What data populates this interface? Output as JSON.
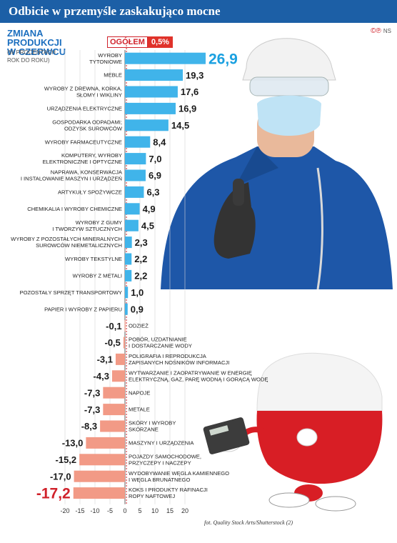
{
  "header": {
    "title": "Odbicie w przemyśle zaskakująco mocne"
  },
  "logo": {
    "icons": "©℗",
    "text": "NS"
  },
  "subtitle": [
    "ZMIANA PRODUKCJI",
    "W CZERWCU"
  ],
  "unit_note": [
    "(W PROCENTACH",
    "ROK DO ROKU)"
  ],
  "overall": {
    "label": "OGÓŁEM",
    "value": "0,5%"
  },
  "credit": "fot. Quality Stock Arts/Shutterstock (2)",
  "colors": {
    "header": "#1c5fa6",
    "positive_bar": "#40b4ea",
    "negative_bar": "#f29a86",
    "accent_red": "#d0212a",
    "text_dark": "#1a1a1a"
  },
  "chart_data": {
    "type": "bar",
    "orientation": "horizontal",
    "title": "Odbicie w przemyśle zaskakująco mocne",
    "subtitle": "ZMIANA PRODUKCJI W CZERWCU (W PROCENTACH ROK DO ROKU)",
    "xlim": [
      -20,
      29
    ],
    "xticks": [
      -20,
      -15,
      -10,
      -5,
      0,
      5,
      10,
      15,
      20
    ],
    "grid": true,
    "categories": [
      "WYROBY TYTONIOWE",
      "MEBLE",
      "WYROBY Z DREWNA, KORKA, SŁOMY I WIKLINY",
      "URZĄDZENIA ELEKTRYCZNE",
      "GOSPODARKA ODPADAMI; ODZYSK SUROWCÓW",
      "WYROBY FARMACEUTYCZNE",
      "KOMPUTERY, WYROBY ELEKTRONICZNE I OPTYCZNE",
      "NAPRAWA, KONSERWACJA I INSTALOWANIE MASZYN I URZĄDZEŃ",
      "ARTYKUŁY SPOŻYWCZE",
      "CHEMIKALIA I WYROBY CHEMICZNE",
      "WYROBY Z GUMY I TWORZYW SZTUCZNYCH",
      "WYROBY Z POZOSTAŁYCH MINERALNYCH SUROWCÓW NIEMETALICZNYCH",
      "WYROBY TEKSTYLNE",
      "WYROBY Z METALI",
      "POZOSTAŁY SPRZĘT TRANSPORTOWY",
      "PAPIER I WYROBY Z PAPIERU",
      "ODZIEŻ",
      "POBÓR, UZDATNIANIE I DOSTARCZANIE WODY",
      "POLIGRAFIA I REPRODUKCJA ZAPISANYCH NOŚNIKÓW INFORMACJI",
      "WYTWARZANIE I ZAOPATRYWANIE W ENERGIĘ ELEKTRYCZNĄ, GAZ, PARĘ WODNĄ I GORĄCĄ WODĘ",
      "NAPOJE",
      "METALE",
      "SKÓRY I WYROBY SKÓRZANE",
      "MASZYNY I URZĄDZENIA",
      "POJAZDY SAMOCHODOWE, PRZYCZEPY I NACZEPY",
      "WYDOBYWANIE WĘGLA KAMIENNEGO I WĘGLA BRUNATNEGO",
      "KOKS I PRODUKTY RAFINACJI ROPY NAFTOWEJ"
    ],
    "label_lines": [
      [
        "WYROBY",
        "TYTONIOWE"
      ],
      [
        "MEBLE"
      ],
      [
        "WYROBY Z DREWNA, KORKA,",
        "SŁOMY I WIKLINY"
      ],
      [
        "URZĄDZENIA ELEKTRYCZNE"
      ],
      [
        "GOSPODARKA ODPADAMI;",
        "ODZYSK SUROWCÓW"
      ],
      [
        "WYROBY FARMACEUTYCZNE"
      ],
      [
        "KOMPUTERY, WYROBY",
        "ELEKTRONICZNE I OPTYCZNE"
      ],
      [
        "NAPRAWA, KONSERWACJA",
        "I INSTALOWANIE MASZYN I URZĄDZEŃ"
      ],
      [
        "ARTYKUŁY SPOŻYWCZE"
      ],
      [
        "CHEMIKALIA I WYROBY CHEMICZNE"
      ],
      [
        "WYROBY Z GUMY",
        "I TWORZYW SZTUCZNYCH"
      ],
      [
        "WYROBY Z POZOSTAŁYCH MINERALNYCH",
        "SUROWCÓW NIEMETALICZNYCH"
      ],
      [
        "WYROBY TEKSTYLNE"
      ],
      [
        "WYROBY Z METALI"
      ],
      [
        "POZOSTAŁY SPRZĘT TRANSPORTOWY"
      ],
      [
        "PAPIER I WYROBY Z PAPIERU"
      ],
      [
        "ODZIEŻ"
      ],
      [
        "POBÓR, UZDATNIANIE",
        "I DOSTARCZANIE WODY"
      ],
      [
        "POLIGRAFIA I REPRODUKCJA",
        "ZAPISANYCH NOŚNIKÓW INFORMACJI"
      ],
      [
        "WYTWARZANIE I ZAOPATRYWANIE W ENERGIĘ",
        "ELEKTRYCZNĄ, GAZ, PARĘ WODNĄ I GORĄCĄ WODĘ"
      ],
      [
        "NAPOJE"
      ],
      [
        "METALE"
      ],
      [
        "SKÓRY I WYROBY",
        "SKÓRZANE"
      ],
      [
        "MASZYNY I URZĄDZENIA"
      ],
      [
        "POJAZDY SAMOCHODOWE,",
        "PRZYCZEPY I NACZEPY"
      ],
      [
        "WYDOBYWANIE WĘGLA KAMIENNEGO",
        "I WĘGLA BRUNATNEGO"
      ],
      [
        "KOKS I PRODUKTY RAFINACJI",
        "ROPY NAFTOWEJ"
      ]
    ],
    "values": [
      26.9,
      19.3,
      17.6,
      16.9,
      14.5,
      8.4,
      7.0,
      6.9,
      6.3,
      4.9,
      4.5,
      2.3,
      2.2,
      2.2,
      1.0,
      0.9,
      -0.1,
      -0.5,
      -3.1,
      -4.3,
      -7.3,
      -7.3,
      -8.3,
      -13.0,
      -15.2,
      -17.0,
      -17.2
    ],
    "value_labels": [
      "26,9",
      "19,3",
      "17,6",
      "16,9",
      "14,5",
      "8,4",
      "7,0",
      "6,9",
      "6,3",
      "4,9",
      "4,5",
      "2,3",
      "2,2",
      "2,2",
      "1,0",
      "0,9",
      "-0,1",
      "-0,5",
      "-3,1",
      "-4,3",
      "-7,3",
      "-7,3",
      "-8,3",
      "-13,0",
      "-15,2",
      "-17,0",
      "-17,2"
    ],
    "reference_line": {
      "label": "OGÓŁEM",
      "value": 0.5
    }
  }
}
